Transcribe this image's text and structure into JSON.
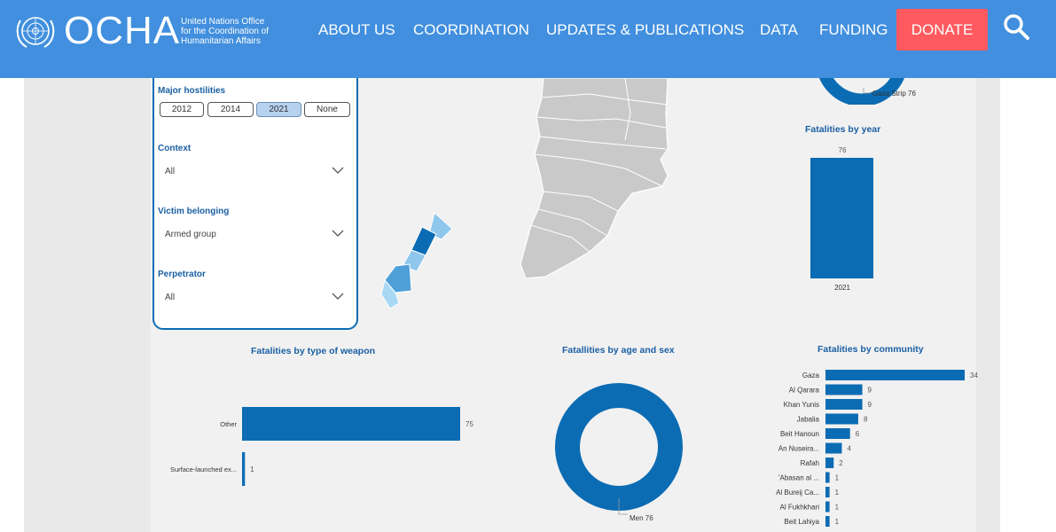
{
  "header": {
    "logo_text": "OCHA",
    "logo_subtitle": [
      "United Nations Office",
      "for the Coordination of",
      "Humanitarian Affairs"
    ],
    "nav": [
      "ABOUT US",
      "COORDINATION",
      "UPDATES & PUBLICATIONS",
      "DATA",
      "FUNDING"
    ],
    "donate_label": "DONATE",
    "colors": {
      "bar": "#418fde",
      "donate": "#ff5a5f"
    }
  },
  "filters": {
    "major_hostilities_label": "Major hostilities",
    "years": [
      "2012",
      "2014",
      "2021",
      "None"
    ],
    "selected_year": "2021",
    "context_label": "Context",
    "context_value": "All",
    "victim_label": "Victim belonging",
    "victim_value": "Armed group",
    "perpetrator_label": "Perpetrator",
    "perpetrator_value": "All"
  },
  "map": {
    "donut_label": "Gaza Strip 76"
  },
  "charts": {
    "year_title": "Fatalities by year",
    "weapon_title": "Fatalities by type of weapon",
    "age_title": "Fatallities by age and sex",
    "community_title": "Fatalities by community",
    "donut_label": "Men 76",
    "accent": "#0b6cb4"
  },
  "chart_data": [
    {
      "type": "bar",
      "title": "Fatalities by year",
      "categories": [
        "2021"
      ],
      "values": [
        76
      ]
    },
    {
      "type": "bar",
      "orientation": "horizontal",
      "title": "Fatalities by type of weapon",
      "categories": [
        "Other",
        "Surface-launched ex..."
      ],
      "values": [
        75,
        1
      ]
    },
    {
      "type": "pie",
      "title": "Fatallities by age and sex",
      "categories": [
        "Men"
      ],
      "values": [
        76
      ]
    },
    {
      "type": "bar",
      "orientation": "horizontal",
      "title": "Fatalities by community",
      "categories": [
        "Gaza",
        "Al Qarara",
        "Khan Yunis",
        "Jabalia",
        "Beit Hanoun",
        "An Nuseira...",
        "Rafah",
        "'Abasan al ...",
        "Al Bureij Ca...",
        "Al Fukhkhari",
        "Beit Lahiya"
      ],
      "values": [
        34,
        9,
        9,
        8,
        6,
        4,
        2,
        1,
        1,
        1,
        1
      ]
    }
  ]
}
